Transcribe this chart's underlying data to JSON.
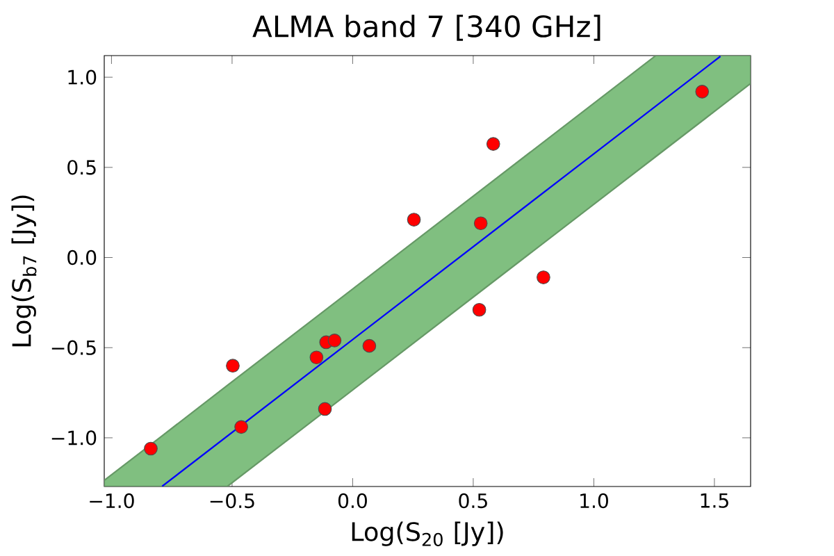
{
  "chart_data": {
    "type": "scatter",
    "title": "ALMA band 7 [340 GHz]",
    "xlabel": "Log(S$_{20}$ [Jy])",
    "ylabel": "Log(S$_{b7}$ [Jy])",
    "xlim": [
      -1.03,
      1.65
    ],
    "ylim": [
      -1.27,
      1.12
    ],
    "xticks": [
      {
        "value": -1.0,
        "label": "−1.0"
      },
      {
        "value": -0.5,
        "label": "−0.5"
      },
      {
        "value": 0.0,
        "label": "0.0"
      },
      {
        "value": 0.5,
        "label": "0.5"
      },
      {
        "value": 1.0,
        "label": "1.0"
      },
      {
        "value": 1.5,
        "label": "1.5"
      }
    ],
    "yticks": [
      {
        "value": -1.0,
        "label": "−1.0"
      },
      {
        "value": -0.5,
        "label": "−0.5"
      },
      {
        "value": 0.0,
        "label": "0.0"
      },
      {
        "value": 0.5,
        "label": "0.5"
      },
      {
        "value": 1.0,
        "label": "1.0"
      }
    ],
    "series": [
      {
        "type": "area",
        "color": "#80bf80",
        "x": [
          -1.03,
          -0.79,
          -0.52,
          1.257,
          1.525,
          1.65
        ],
        "values": [
          null,
          null,
          null,
          null,
          null,
          null
        ],
        "lower": [
          -1.27,
          -1.27,
          -1.27,
          0.56,
          0.836,
          0.965
        ],
        "upper": [
          -1.236,
          -0.989,
          -0.71,
          1.12,
          1.12,
          1.12
        ]
      },
      {
        "type": "line",
        "color": "#0000ff",
        "marker": "none",
        "x": [
          -0.79,
          1.525
        ],
        "values": [
          -1.269,
          1.116
        ]
      },
      {
        "color": "#ff0000",
        "x": [
          -0.837,
          -0.497,
          -0.462,
          -0.15,
          -0.11,
          -0.075,
          -0.115,
          0.069,
          0.254,
          0.531,
          0.583,
          0.525,
          0.791,
          1.449
        ],
        "values": [
          -1.06,
          -0.6,
          -0.94,
          -0.554,
          -0.47,
          -0.46,
          -0.84,
          -0.49,
          0.21,
          0.19,
          0.63,
          -0.29,
          -0.11,
          0.92
        ]
      }
    ]
  }
}
